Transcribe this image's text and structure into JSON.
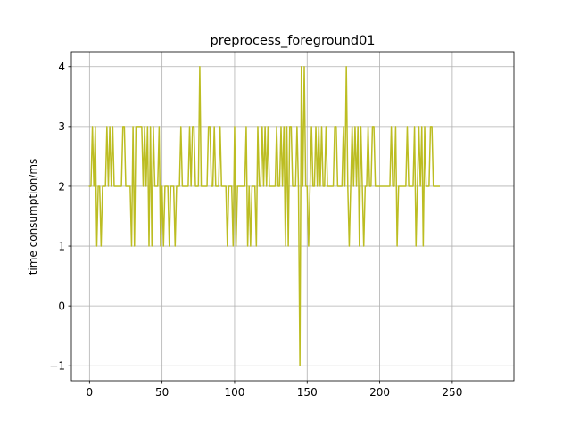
{
  "chart_data": {
    "type": "line",
    "title": "preprocess_foreground01",
    "xlabel": "",
    "ylabel": "time consumption/ms",
    "xlim": [
      -12.5,
      292.5
    ],
    "ylim": [
      -1.25,
      4.25
    ],
    "xticks": [
      0,
      50,
      100,
      150,
      200,
      250
    ],
    "yticks": [
      -1,
      0,
      1,
      2,
      3,
      4
    ],
    "ytick_labels": [
      "−1",
      "0",
      "1",
      "2",
      "3",
      "4"
    ],
    "grid": true,
    "legend": "none",
    "series": [
      {
        "color": "#bcbd22",
        "x_start": 0,
        "x_step": 1,
        "values": [
          2,
          2,
          3,
          2,
          3,
          1,
          2,
          2,
          1,
          2,
          2,
          2,
          3,
          2,
          3,
          2,
          3,
          2,
          2,
          2,
          2,
          2,
          2,
          3,
          3,
          2,
          2,
          2,
          2,
          1,
          3,
          1,
          3,
          3,
          3,
          3,
          3,
          2,
          3,
          2,
          3,
          1,
          3,
          1,
          3,
          2,
          2,
          2,
          3,
          1,
          2,
          1,
          2,
          2,
          2,
          1,
          2,
          2,
          2,
          1,
          2,
          2,
          2,
          3,
          2,
          2,
          2,
          2,
          2,
          3,
          2,
          3,
          3,
          2,
          2,
          2,
          4,
          2,
          2,
          2,
          2,
          2,
          3,
          3,
          2,
          2,
          3,
          2,
          2,
          2,
          3,
          2,
          2,
          2,
          2,
          1,
          2,
          2,
          2,
          1,
          3,
          1,
          2,
          2,
          2,
          2,
          2,
          2,
          3,
          1,
          2,
          1,
          2,
          2,
          2,
          1,
          3,
          2,
          2,
          3,
          2,
          3,
          2,
          3,
          2,
          2,
          2,
          2,
          2,
          3,
          2,
          2,
          3,
          2,
          3,
          1,
          3,
          1,
          3,
          3,
          2,
          2,
          2,
          3,
          2,
          -1,
          4,
          2,
          4,
          2,
          2,
          1,
          2,
          3,
          2,
          2,
          3,
          2,
          3,
          2,
          3,
          2,
          2,
          3,
          2,
          2,
          2,
          2,
          2,
          3,
          3,
          2,
          2,
          2,
          2,
          3,
          2,
          4,
          2,
          1,
          2,
          3,
          2,
          3,
          2,
          3,
          1,
          3,
          2,
          1,
          2,
          2,
          3,
          2,
          2,
          3,
          3,
          2,
          2,
          2,
          2,
          2,
          2,
          2,
          2,
          2,
          2,
          2,
          3,
          2,
          2,
          3,
          1,
          2,
          2,
          2,
          2,
          2,
          2,
          3,
          2,
          2,
          2,
          2,
          3,
          1,
          2,
          3,
          2,
          3,
          1,
          3,
          2,
          2,
          2,
          3,
          3,
          2,
          2,
          2,
          2,
          2
        ]
      }
    ]
  }
}
